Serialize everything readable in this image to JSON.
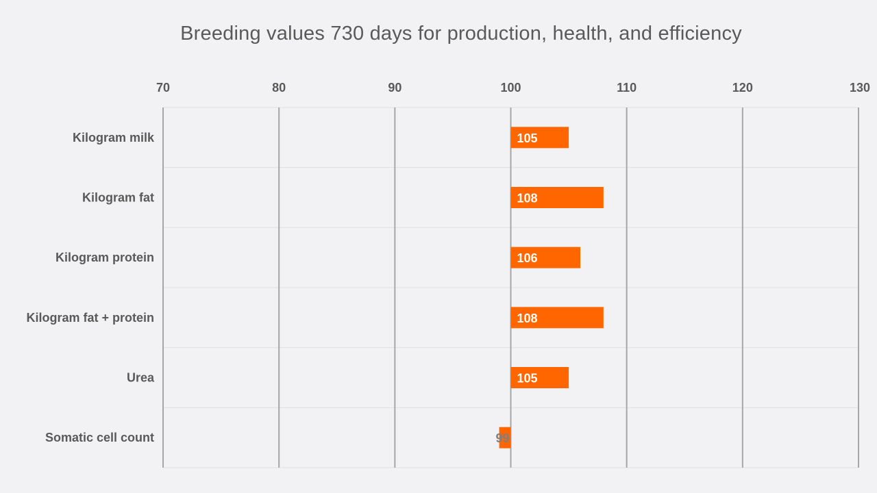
{
  "chart_data": {
    "type": "bar",
    "orientation": "horizontal",
    "title": "Breeding values 730 days for production, health, and efficiency",
    "categories": [
      "Kilogram milk",
      "Kilogram fat",
      "Kilogram protein",
      "Kilogram fat + protein",
      "Urea",
      "Somatic cell count"
    ],
    "values": [
      105,
      108,
      106,
      108,
      105,
      99
    ],
    "baseline": 100,
    "xlim": [
      70,
      130
    ],
    "x_ticks": [
      70,
      80,
      90,
      100,
      110,
      120,
      130
    ],
    "x_axis_position": "top",
    "grid": true,
    "xlabel": "",
    "ylabel": "",
    "colors": {
      "bar": "#ff6600",
      "label_inside": "#ffffff",
      "label_outside": "#7f7f7f",
      "text": "#595959",
      "grid_major": "#a6a6a6",
      "grid_minor": "#e0e0e0"
    }
  }
}
